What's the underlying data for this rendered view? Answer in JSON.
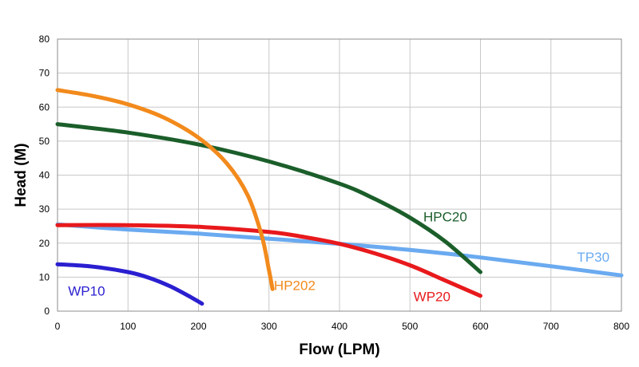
{
  "chart_data": {
    "type": "line",
    "title": "",
    "xlabel": "Flow (LPM)",
    "ylabel": "Head (M)",
    "xlim": [
      0,
      800
    ],
    "ylim": [
      0,
      80
    ],
    "xticks": [
      0,
      100,
      200,
      300,
      400,
      500,
      600,
      700,
      800
    ],
    "yticks": [
      0,
      10,
      20,
      30,
      40,
      50,
      60,
      70,
      80
    ],
    "grid": true,
    "legend": "none",
    "series": [
      {
        "name": "WP10",
        "color": "#2a1fd0",
        "x": [
          0,
          50,
          100,
          130,
          160,
          190,
          205
        ],
        "y": [
          13.8,
          13.1,
          11.5,
          9.8,
          7.3,
          4.0,
          2.2
        ]
      },
      {
        "name": "HP202",
        "color": "#f28a1c",
        "x": [
          0,
          50,
          100,
          150,
          200,
          240,
          270,
          290,
          300,
          305
        ],
        "y": [
          65,
          63.3,
          60.8,
          57.0,
          51.0,
          43.5,
          34.0,
          22.0,
          12.0,
          6.5
        ]
      },
      {
        "name": "HPC20",
        "color": "#1b5e2a",
        "x": [
          0,
          100,
          200,
          300,
          400,
          450,
          500,
          550,
          600
        ],
        "y": [
          55,
          52.5,
          49.0,
          44.0,
          37.5,
          33.0,
          27.5,
          20.5,
          11.5
        ]
      },
      {
        "name": "WP20",
        "color": "#e8191c",
        "x": [
          0,
          100,
          200,
          300,
          350,
          400,
          450,
          500,
          550,
          600
        ],
        "y": [
          25.3,
          25.3,
          24.8,
          23.3,
          21.8,
          19.8,
          17.0,
          13.5,
          9.0,
          4.5
        ]
      },
      {
        "name": "TP30",
        "color": "#6aaaf0",
        "x": [
          0,
          100,
          200,
          300,
          400,
          500,
          600,
          700,
          800
        ],
        "y": [
          25.5,
          24.0,
          22.8,
          21.3,
          19.8,
          18.0,
          15.8,
          13.2,
          10.5
        ]
      }
    ],
    "labels": [
      {
        "text": "WP10",
        "series": 0,
        "x": 15,
        "y": 4.6
      },
      {
        "text": "HP202",
        "series": 1,
        "x": 307,
        "y": 6.2
      },
      {
        "text": "HPC20",
        "series": 2,
        "x": 519,
        "y": 26.4
      },
      {
        "text": "WP20",
        "series": 3,
        "x": 505,
        "y": 2.9
      },
      {
        "text": "TP30",
        "series": 4,
        "x": 737,
        "y": 14.5
      }
    ]
  }
}
